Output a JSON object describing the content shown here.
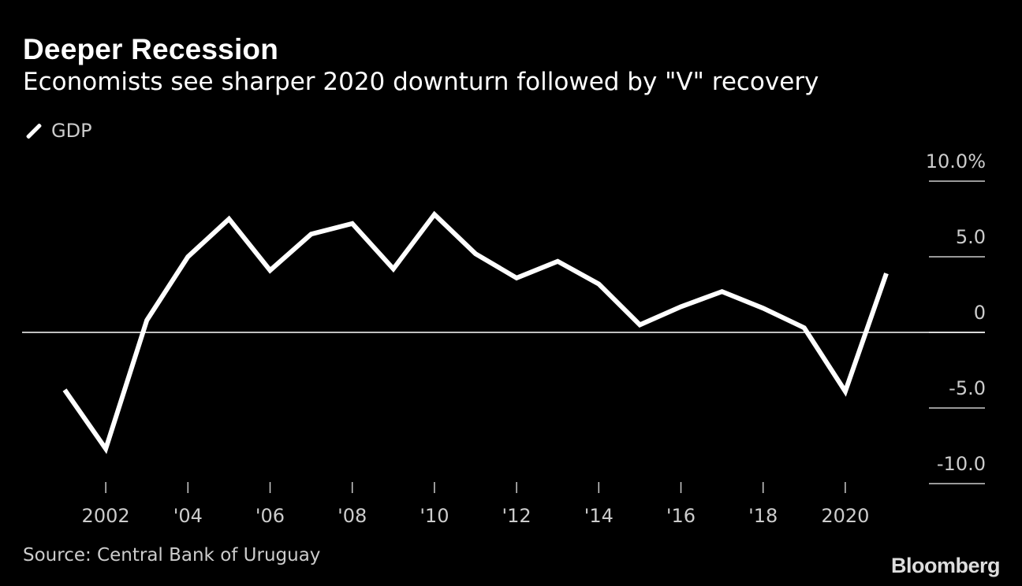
{
  "header": {
    "title": "Deeper Recession",
    "subtitle": "Economists see sharper 2020 downturn followed by \"V\" recovery"
  },
  "legend": {
    "label": "GDP"
  },
  "footer": {
    "source": "Source: Central Bank of Uruguay",
    "brand": "Bloomberg"
  },
  "colors": {
    "background": "#000000",
    "line": "#ffffff",
    "text": "#cccccc"
  },
  "chart_data": {
    "type": "line",
    "title": "Deeper Recession",
    "subtitle": "Economists see sharper 2020 downturn followed by \"V\" recovery",
    "xlabel": "",
    "ylabel": "",
    "x": [
      2001,
      2002,
      2003,
      2004,
      2005,
      2006,
      2007,
      2008,
      2009,
      2010,
      2011,
      2012,
      2013,
      2014,
      2015,
      2016,
      2017,
      2018,
      2019,
      2020,
      2021
    ],
    "series": [
      {
        "name": "GDP",
        "values": [
          -3.8,
          -7.7,
          0.8,
          5.0,
          7.5,
          4.1,
          6.5,
          7.2,
          4.2,
          7.8,
          5.2,
          3.6,
          4.7,
          3.2,
          0.5,
          1.7,
          2.7,
          1.6,
          0.3,
          -3.9,
          3.9
        ]
      }
    ],
    "xticks": [
      {
        "x": 2002,
        "label": "2002"
      },
      {
        "x": 2004,
        "label": "'04"
      },
      {
        "x": 2006,
        "label": "'06"
      },
      {
        "x": 2008,
        "label": "'08"
      },
      {
        "x": 2010,
        "label": "'10"
      },
      {
        "x": 2012,
        "label": "'12"
      },
      {
        "x": 2014,
        "label": "'14"
      },
      {
        "x": 2016,
        "label": "'16"
      },
      {
        "x": 2018,
        "label": "'18"
      },
      {
        "x": 2020,
        "label": "2020"
      }
    ],
    "yticks": [
      {
        "y": 10,
        "label": "10.0%"
      },
      {
        "y": 5,
        "label": "5.0"
      },
      {
        "y": 0,
        "label": "0"
      },
      {
        "y": -5,
        "label": "-5.0"
      },
      {
        "y": -10,
        "label": "-10.0"
      }
    ],
    "ylim": [
      -10,
      10
    ],
    "xlim": [
      2001,
      2021
    ],
    "zero_line": true,
    "grid": false,
    "legend_position": "top-left"
  }
}
